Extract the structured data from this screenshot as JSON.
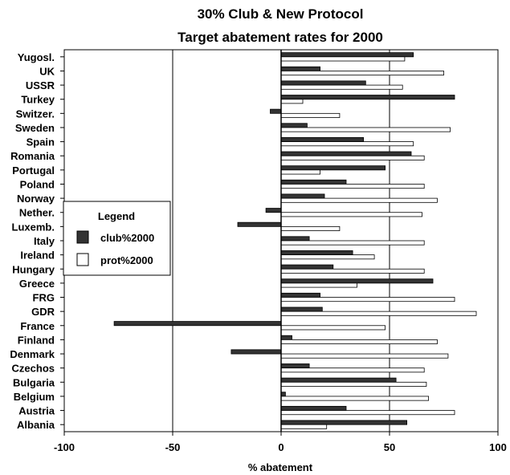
{
  "chart_data": {
    "type": "bar",
    "orientation": "horizontal",
    "title": "30% Club & New Protocol",
    "subtitle": "Target abatement rates for 2000",
    "xlabel": "% abatement",
    "ylabel": "",
    "xlim": [
      -100,
      100
    ],
    "xticks": [
      -100,
      -50,
      0,
      50,
      100
    ],
    "grid": "vertical",
    "legend": {
      "title": "Legend",
      "position": "left",
      "entries": [
        "club%2000",
        "prot%2000"
      ]
    },
    "categories": [
      "Yugosl.",
      "UK",
      "USSR",
      "Turkey",
      "Switzer.",
      "Sweden",
      "Spain",
      "Romania",
      "Portugal",
      "Poland",
      "Norway",
      "Nether.",
      "Luxemb.",
      "Italy",
      "Ireland",
      "Hungary",
      "Greece",
      "FRG",
      "GDR",
      "France",
      "Finland",
      "Denmark",
      "Czechos",
      "Bulgaria",
      "Belgium",
      "Austria",
      "Albania"
    ],
    "series": [
      {
        "name": "club%2000",
        "color": "#333333",
        "values": [
          61,
          18,
          39,
          80,
          -5,
          12,
          38,
          60,
          48,
          30,
          20,
          -7,
          -20,
          13,
          33,
          24,
          70,
          18,
          19,
          -77,
          5,
          -23,
          13,
          53,
          2,
          30,
          58
        ]
      },
      {
        "name": "prot%2000",
        "color": "#ffffff",
        "values": [
          57,
          75,
          56,
          10,
          27,
          78,
          61,
          66,
          18,
          66,
          72,
          65,
          27,
          66,
          43,
          66,
          35,
          80,
          90,
          48,
          72,
          77,
          66,
          67,
          68,
          80,
          21
        ]
      }
    ]
  }
}
